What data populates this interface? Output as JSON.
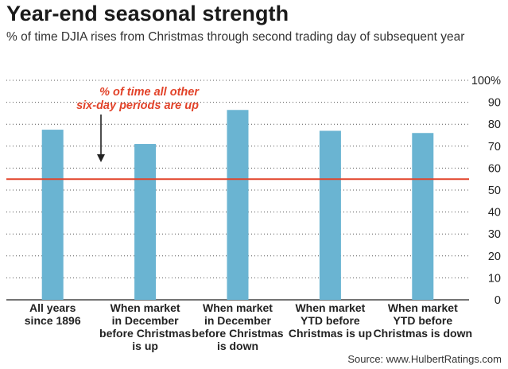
{
  "chart_data": {
    "type": "bar",
    "title": "Year-end seasonal strength",
    "subtitle": "% of time DJIA rises from Christmas through second trading day of subsequent year",
    "categories": [
      [
        "All  years",
        "since 1896"
      ],
      [
        "When market",
        "in December",
        "before Christmas",
        "is up"
      ],
      [
        "When market",
        "in December",
        "before Christmas",
        "is down"
      ],
      [
        "When market",
        "YTD before",
        "Christmas is up"
      ],
      [
        "When market",
        "YTD before",
        "Christmas is down"
      ]
    ],
    "values": [
      77.5,
      71,
      86.5,
      77,
      76
    ],
    "ylim": [
      0,
      100
    ],
    "yticks": [
      "0",
      "10",
      "20",
      "30",
      "40",
      "50",
      "60",
      "70",
      "80",
      "90",
      "100%"
    ],
    "reference_line": {
      "value": 55,
      "label": [
        "% of time all other",
        "six-day periods are up"
      ]
    },
    "grid": true,
    "bar_color": "#6ab4d2",
    "reference_color": "#e2432a",
    "source": "Source: www.HulbertRatings.com"
  }
}
